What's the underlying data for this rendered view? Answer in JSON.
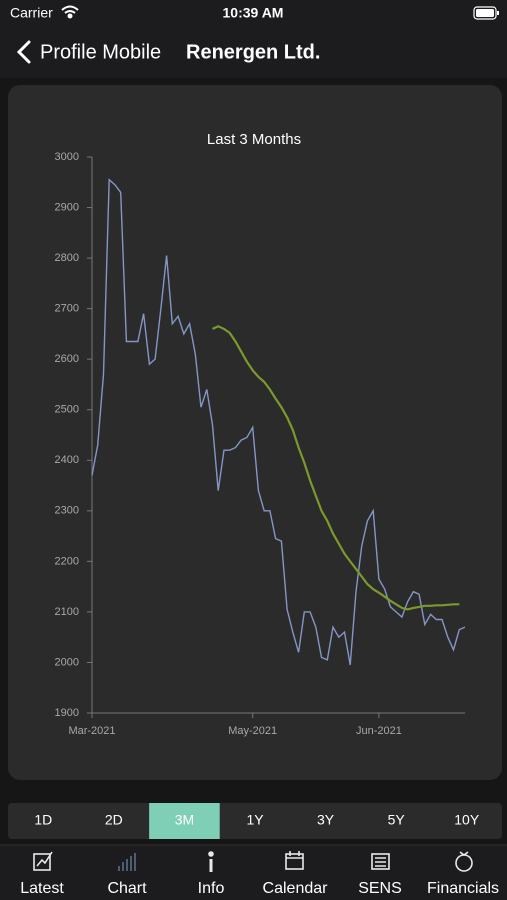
{
  "status_bar": {
    "carrier": "Carrier",
    "time": "10:39 AM"
  },
  "nav": {
    "back": "Profile Mobile",
    "title": "Renergen Ltd."
  },
  "chart_data": {
    "type": "line",
    "title": "Last 3 Months",
    "categories": [
      "Mar-2021",
      null,
      null,
      null,
      null,
      null,
      null,
      null,
      null,
      null,
      null,
      null,
      null,
      null,
      null,
      null,
      null,
      null,
      null,
      null,
      null,
      null,
      null,
      null,
      null,
      null,
      null,
      null,
      "May-2021",
      null,
      null,
      null,
      null,
      null,
      null,
      null,
      null,
      null,
      null,
      null,
      null,
      null,
      null,
      null,
      null,
      null,
      null,
      null,
      null,
      null,
      "Jun-2021",
      null,
      null,
      null,
      null,
      null,
      null,
      null,
      null,
      null,
      null,
      null,
      null,
      null,
      null,
      null
    ],
    "series": [
      {
        "color": "#8596c6",
        "values": [
          2370,
          2430,
          2570,
          2955,
          2945,
          2930,
          2635,
          2635,
          2635,
          2690,
          2590,
          2600,
          2700,
          2805,
          2670,
          2685,
          2650,
          2670,
          2610,
          2505,
          2540,
          2470,
          2340,
          2420,
          2420,
          2425,
          2440,
          2445,
          2465,
          2340,
          2300,
          2300,
          2245,
          2240,
          2105,
          2060,
          2020,
          2100,
          2100,
          2070,
          2010,
          2005,
          2070,
          2050,
          2060,
          1995,
          2140,
          2230,
          2280,
          2300,
          2165,
          2145,
          2110,
          2100,
          2090,
          2120,
          2140,
          2135,
          2075,
          2095,
          2085,
          2085,
          2050,
          2025,
          2065,
          2070
        ]
      },
      {
        "color": "#7b9a2c",
        "values": [
          null,
          null,
          null,
          null,
          null,
          null,
          null,
          null,
          null,
          null,
          null,
          null,
          null,
          null,
          null,
          null,
          null,
          null,
          null,
          null,
          null,
          2660,
          2665,
          2660,
          2652,
          2635,
          2615,
          2595,
          2578,
          2565,
          2555,
          2540,
          2522,
          2505,
          2485,
          2460,
          2425,
          2395,
          2360,
          2330,
          2300,
          2280,
          2255,
          2235,
          2215,
          2200,
          2185,
          2170,
          2155,
          2145,
          2138,
          2130,
          2122,
          2115,
          2108,
          2105,
          2108,
          2110,
          2112,
          2112,
          2113,
          2113,
          2114,
          2115,
          2115,
          null
        ]
      }
    ],
    "ylim": [
      1900,
      3000
    ],
    "yticks": [
      1900,
      2000,
      2100,
      2200,
      2300,
      2400,
      2500,
      2600,
      2700,
      2800,
      2900,
      3000
    ],
    "grid": false
  },
  "range_buttons": {
    "options": [
      "1D",
      "2D",
      "3M",
      "1Y",
      "3Y",
      "5Y",
      "10Y"
    ],
    "selected": 2
  },
  "tabs": {
    "items": [
      "Latest",
      "Chart",
      "Info",
      "Calendar",
      "SENS",
      "Financials"
    ],
    "selected": 1
  }
}
